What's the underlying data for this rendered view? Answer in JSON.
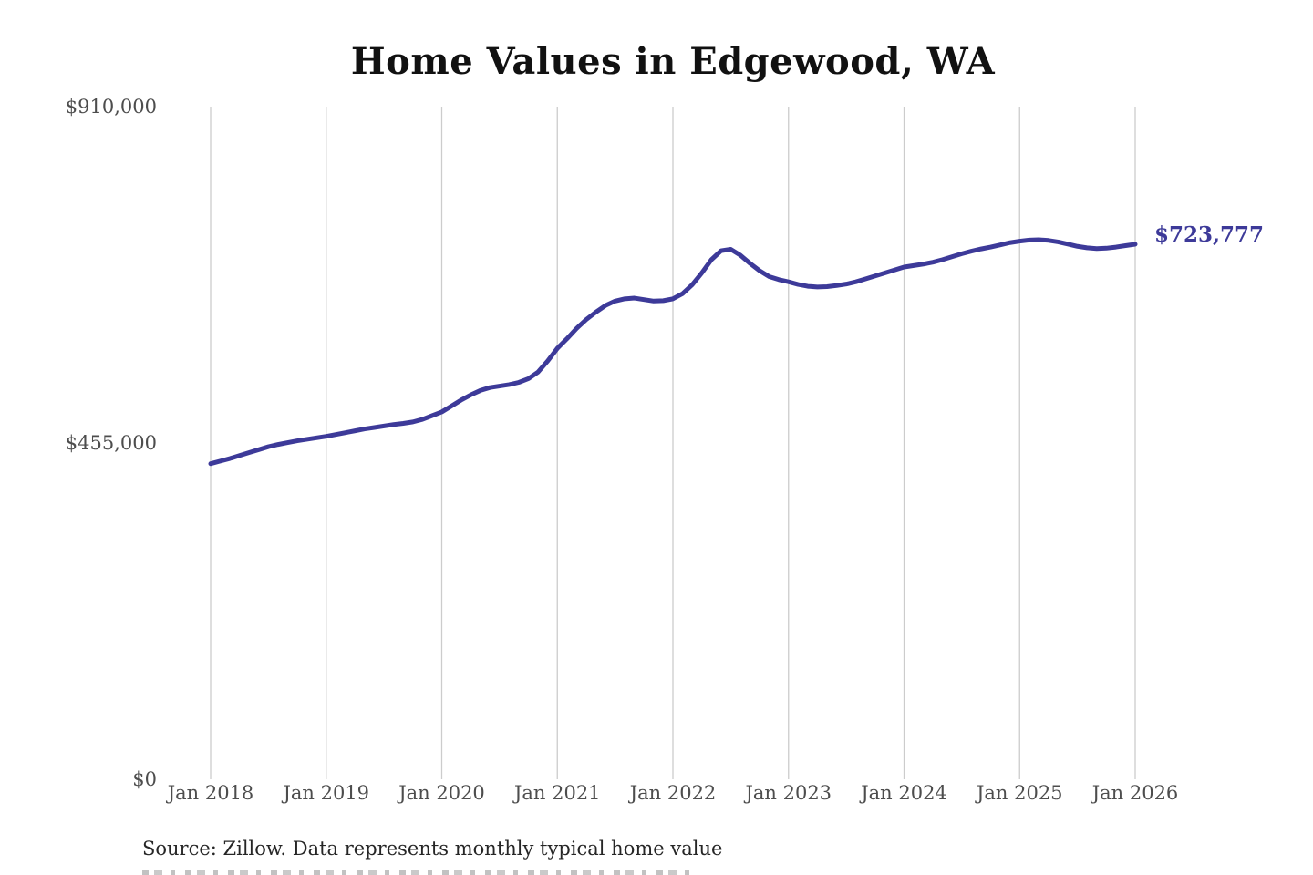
{
  "title": "Home Values in Edgewood, WA",
  "source_note": "Source: Zillow. Data represents monthly typical home value",
  "end_label": "$723,777",
  "colors": {
    "line": "#3d3a99",
    "grid": "#cccccc",
    "axis_text": "#4d4d4d",
    "title_text": "#111111",
    "end_label_text": "#3d3a99"
  },
  "chart_data": {
    "type": "line",
    "title": "Home Values in Edgewood, WA",
    "series_name": "Monthly typical home value",
    "legend": "none",
    "grid": "vertical-only",
    "ylim": [
      0,
      910000
    ],
    "y_ticks": [
      {
        "label": "$0",
        "value": 0
      },
      {
        "label": "$455,000",
        "value": 455000
      },
      {
        "label": "$910,000",
        "value": 910000
      }
    ],
    "x_tick_labels": [
      "Jan 2018",
      "Jan 2019",
      "Jan 2020",
      "Jan 2021",
      "Jan 2022",
      "Jan 2023",
      "Jan 2024",
      "Jan 2025",
      "Jan 2026"
    ],
    "x_start": "Jan 2018",
    "x_end": "Jan 2026",
    "x_interval": "monthly",
    "end_value": 723777,
    "values": [
      427000,
      430500,
      434000,
      438000,
      442000,
      446000,
      450000,
      453000,
      455500,
      458000,
      460000,
      462000,
      464000,
      466500,
      469000,
      471500,
      474000,
      476000,
      478000,
      480000,
      481500,
      483500,
      487000,
      492000,
      497000,
      505000,
      513000,
      520000,
      526000,
      530000,
      532000,
      534000,
      537000,
      542000,
      551000,
      566000,
      583000,
      596000,
      610000,
      622000,
      632000,
      641000,
      647000,
      650000,
      651000,
      649000,
      647000,
      647500,
      650000,
      657000,
      669000,
      685000,
      703000,
      715000,
      717000,
      709000,
      698000,
      688000,
      680000,
      676000,
      673000,
      669500,
      667000,
      666000,
      666500,
      668000,
      670000,
      673000,
      677000,
      681000,
      685000,
      689000,
      693000,
      695000,
      697000,
      699500,
      703000,
      707000,
      711000,
      714500,
      717500,
      720000,
      723000,
      726000,
      728000,
      729500,
      730000,
      729000,
      727000,
      724000,
      721000,
      719000,
      718000,
      718500,
      720000,
      722000,
      723777
    ]
  }
}
